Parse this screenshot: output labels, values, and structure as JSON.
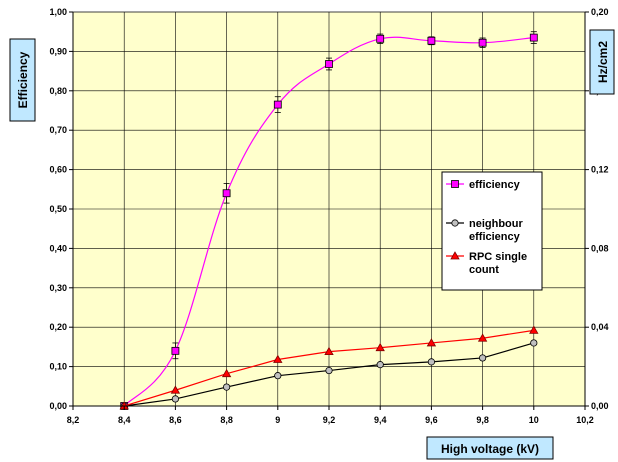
{
  "chart_data": {
    "type": "line",
    "xlabel": "High voltage (kV)",
    "ylabel": "Efficiency",
    "y2label": "Hz/cm2",
    "xlim": [
      8.2,
      10.2
    ],
    "ylim": [
      0,
      1
    ],
    "y2lim": [
      0,
      0.2
    ],
    "x_ticks": [
      "8,2",
      "8,4",
      "8,6",
      "8,8",
      "9",
      "9,2",
      "9,4",
      "9,6",
      "9,8",
      "10",
      "10,2"
    ],
    "y_ticks": [
      "0,00",
      "0,10",
      "0,20",
      "0,30",
      "0,40",
      "0,50",
      "0,60",
      "0,70",
      "0,80",
      "0,90",
      "1,00"
    ],
    "y2_ticks": [
      "0,00",
      "0,04",
      "0,08",
      "0,12",
      "0,16",
      "0,20"
    ],
    "grid": true,
    "legend_position": "right",
    "background": "#FFFFCC",
    "series": [
      {
        "name": "efficiency",
        "axis": "left",
        "color": "#FF00FF",
        "marker": "square",
        "smooth": true,
        "x": [
          8.4,
          8.6,
          8.8,
          9.0,
          9.2,
          9.4,
          9.6,
          9.8,
          10.0
        ],
        "y": [
          0.0,
          0.14,
          0.54,
          0.765,
          0.868,
          0.932,
          0.927,
          0.922,
          0.935
        ],
        "err": [
          0.0,
          0.02,
          0.025,
          0.02,
          0.015,
          0.012,
          0.01,
          0.012,
          0.015
        ]
      },
      {
        "name": "neighbour efficiency",
        "label_lines": [
          "neighbour",
          "efficiency"
        ],
        "axis": "left",
        "color": "#000000",
        "marker": "circle",
        "smooth": false,
        "x": [
          8.4,
          8.6,
          8.8,
          9.0,
          9.2,
          9.4,
          9.6,
          9.8,
          10.0
        ],
        "y": [
          0.0,
          0.018,
          0.048,
          0.077,
          0.09,
          0.105,
          0.112,
          0.122,
          0.16
        ]
      },
      {
        "name": "RPC single count",
        "label_lines": [
          "RPC single",
          "count"
        ],
        "axis": "right",
        "color": "#FF0000",
        "marker": "triangle",
        "smooth": false,
        "x": [
          8.4,
          8.6,
          8.8,
          9.0,
          9.2,
          9.4,
          9.6,
          9.8,
          10.0
        ],
        "y": [
          0.0,
          0.008,
          0.0164,
          0.0236,
          0.0276,
          0.0296,
          0.032,
          0.0344,
          0.0384
        ]
      }
    ]
  }
}
